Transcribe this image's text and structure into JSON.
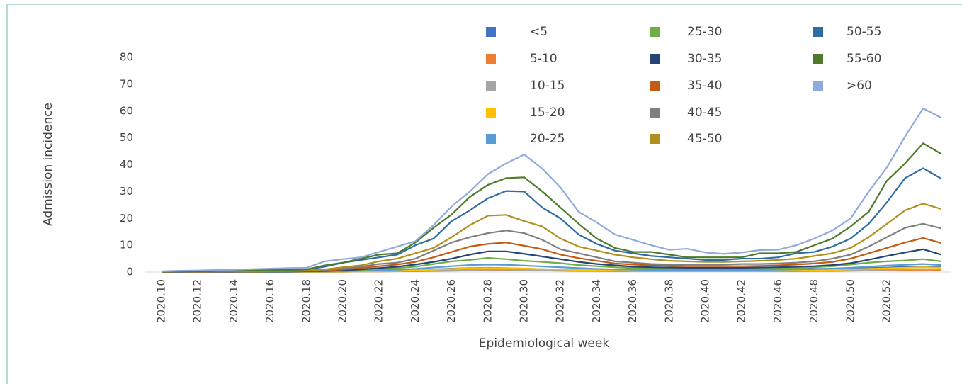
{
  "chart_data": {
    "type": "line",
    "y_label": "Admission incidence",
    "x_label": "Epidemiological week",
    "categories": [
      "2020.10",
      null,
      "2020.12",
      null,
      "2020.14",
      null,
      "2020.16",
      null,
      "2020.18",
      null,
      "2020.20",
      null,
      "2020.22",
      null,
      "2020.24",
      null,
      "2020.26",
      null,
      "2020.28",
      null,
      "2020.30",
      null,
      "2020.32",
      null,
      "2020.34",
      null,
      "2020.36",
      null,
      "2020.38",
      null,
      "2020.40",
      null,
      "2020.42",
      null,
      "2020.46",
      null,
      "2020.48",
      null,
      "2020.50",
      null,
      "2020.52",
      null,
      null,
      null
    ],
    "ylim": [
      0,
      80
    ],
    "yticks": [
      0,
      10,
      20,
      30,
      40,
      50,
      60,
      70,
      80
    ],
    "grid": false,
    "series": [
      {
        "name": "<5",
        "color": "#4472c4",
        "values": [
          0.1,
          0.1,
          0.1,
          0.1,
          0.1,
          0.1,
          0.1,
          0.1,
          0.2,
          0.2,
          0.3,
          0.4,
          0.5,
          0.6,
          0.8,
          1,
          1.3,
          1.5,
          1.6,
          1.5,
          1.3,
          1.1,
          0.9,
          0.8,
          0.7,
          0.6,
          0.6,
          0.6,
          0.6,
          0.7,
          0.7,
          0.8,
          0.8,
          0.9,
          1,
          1.1,
          1.2,
          1.3,
          1.4,
          1.5,
          1.7,
          1.9,
          2,
          1.8
        ]
      },
      {
        "name": "5-10",
        "color": "#ed7d31",
        "values": [
          0,
          0,
          0,
          0,
          0,
          0,
          0,
          0.1,
          0.1,
          0.1,
          0.1,
          0.2,
          0.2,
          0.3,
          0.3,
          0.4,
          0.5,
          0.6,
          0.7,
          0.7,
          0.6,
          0.6,
          0.5,
          0.4,
          0.4,
          0.3,
          0.3,
          0.3,
          0.3,
          0.3,
          0.3,
          0.3,
          0.3,
          0.3,
          0.3,
          0.3,
          0.4,
          0.4,
          0.5,
          0.6,
          0.7,
          0.8,
          0.9,
          0.8
        ]
      },
      {
        "name": "10-15",
        "color": "#a5a5a5",
        "values": [
          0,
          0,
          0,
          0,
          0,
          0,
          0.1,
          0.1,
          0.1,
          0.1,
          0.1,
          0.2,
          0.3,
          0.3,
          0.4,
          0.5,
          0.7,
          0.8,
          0.9,
          0.9,
          0.8,
          0.7,
          0.6,
          0.5,
          0.4,
          0.4,
          0.3,
          0.3,
          0.3,
          0.3,
          0.3,
          0.3,
          0.3,
          0.3,
          0.3,
          0.4,
          0.4,
          0.5,
          0.6,
          0.8,
          0.9,
          1,
          1.1,
          1
        ]
      },
      {
        "name": "15-20",
        "color": "#ffc000",
        "values": [
          0,
          0,
          0,
          0,
          0.1,
          0.1,
          0.1,
          0.1,
          0.1,
          0.1,
          0.2,
          0.3,
          0.4,
          0.5,
          0.7,
          0.9,
          1.2,
          1.4,
          1.5,
          1.5,
          1.3,
          1.1,
          1,
          0.8,
          0.7,
          0.6,
          0.5,
          0.5,
          0.5,
          0.5,
          0.5,
          0.5,
          0.5,
          0.5,
          0.5,
          0.6,
          0.7,
          0.8,
          1,
          1.2,
          1.4,
          1.6,
          1.8,
          1.6
        ]
      },
      {
        "name": "20-25",
        "color": "#5b9bd5",
        "values": [
          0.1,
          0.1,
          0.1,
          0.1,
          0.1,
          0.1,
          0.1,
          0.1,
          0.2,
          0.2,
          0.3,
          0.5,
          0.7,
          0.9,
          1.2,
          1.7,
          2.2,
          2.6,
          2.8,
          2.7,
          2.4,
          2.1,
          1.8,
          1.5,
          1.2,
          1,
          0.9,
          0.8,
          0.8,
          0.8,
          0.8,
          0.8,
          0.8,
          0.8,
          0.9,
          1,
          1.1,
          1.3,
          1.6,
          2,
          2.4,
          2.7,
          3,
          2.6
        ]
      },
      {
        "name": "25-30",
        "color": "#70ad47",
        "values": [
          0.1,
          0.1,
          0.1,
          0.1,
          0.1,
          0.1,
          0.1,
          0.2,
          0.2,
          0.3,
          0.5,
          0.8,
          1.1,
          1.5,
          2,
          3,
          4,
          4.5,
          5.3,
          4.8,
          4.2,
          3.8,
          3.3,
          2.6,
          2.2,
          1.8,
          1.5,
          1.4,
          1.3,
          1.3,
          1.3,
          1.3,
          1.3,
          1.3,
          1.4,
          1.5,
          1.8,
          2.2,
          2.8,
          3.5,
          4,
          4.3,
          4.8,
          4
        ]
      },
      {
        "name": "30-35",
        "color": "#264478",
        "values": [
          0.1,
          0.1,
          0.1,
          0.1,
          0.1,
          0.2,
          0.2,
          0.2,
          0.3,
          0.4,
          0.7,
          1,
          1.5,
          2,
          2.8,
          3.8,
          5,
          6.5,
          7.7,
          7.7,
          6.8,
          5.8,
          4.8,
          3.8,
          3,
          2.5,
          2,
          1.8,
          1.7,
          1.6,
          1.6,
          1.6,
          1.6,
          1.7,
          1.8,
          2,
          2.2,
          2.6,
          3.3,
          4.6,
          6,
          7.3,
          8.5,
          6.5
        ]
      },
      {
        "name": "35-40",
        "color": "#c55a11",
        "values": [
          0.1,
          0.1,
          0.1,
          0.2,
          0.2,
          0.2,
          0.3,
          0.3,
          0.4,
          0.6,
          1,
          1.5,
          2.2,
          2.8,
          3.8,
          5.5,
          7.5,
          9.5,
          10.5,
          11,
          9.8,
          8.5,
          6.5,
          5.2,
          4.2,
          3.2,
          2.8,
          2.5,
          2.3,
          2.2,
          2.2,
          2.2,
          2.2,
          2.3,
          2.5,
          2.8,
          3.2,
          3.8,
          5,
          7,
          9,
          11,
          12.7,
          10.8
        ]
      },
      {
        "name": "40-45",
        "color": "#7f7f7f",
        "values": [
          0.1,
          0.1,
          0.2,
          0.2,
          0.2,
          0.3,
          0.3,
          0.4,
          0.5,
          0.8,
          1.3,
          2,
          3,
          3.5,
          5,
          8,
          11,
          13,
          14.5,
          15.5,
          14.5,
          12,
          8.5,
          7,
          5.5,
          4,
          3.5,
          3,
          2.8,
          2.8,
          2.8,
          2.8,
          3,
          3,
          3.2,
          3.5,
          4,
          5,
          6.5,
          9.5,
          13,
          16.5,
          18,
          16.3
        ]
      },
      {
        "name": "45-50",
        "color": "#b08f1c",
        "values": [
          0.1,
          0.2,
          0.2,
          0.3,
          0.3,
          0.4,
          0.5,
          0.5,
          0.6,
          1,
          1.8,
          2.5,
          4,
          5,
          7,
          9,
          13,
          17.5,
          21,
          21.3,
          19,
          17,
          12.5,
          9.5,
          8,
          6.5,
          5.5,
          4.8,
          4.2,
          4,
          3.8,
          3.8,
          4,
          4.2,
          4.5,
          5,
          6,
          7,
          9,
          13,
          18,
          23,
          25.5,
          23.5
        ]
      },
      {
        "name": "50-55",
        "color": "#2e6ca4",
        "values": [
          0.2,
          0.2,
          0.3,
          0.4,
          0.5,
          0.6,
          0.7,
          0.8,
          1,
          2,
          3.5,
          4.5,
          5.5,
          6.5,
          10,
          12.5,
          19,
          23,
          27.5,
          30.2,
          30,
          24,
          20,
          14,
          10.5,
          8,
          7,
          6,
          5.5,
          5,
          4.5,
          4.5,
          5,
          5,
          5.5,
          7,
          7.5,
          9.5,
          12.5,
          18,
          26,
          35,
          38.7,
          34.8
        ]
      },
      {
        "name": "55-60",
        "color": "#4e7a2a",
        "values": [
          0.2,
          0.3,
          0.3,
          0.4,
          0.5,
          0.6,
          0.7,
          0.8,
          1,
          2.5,
          3.5,
          5,
          6.5,
          7,
          11,
          16.5,
          21.5,
          28,
          32.5,
          35,
          35.3,
          30,
          24,
          18,
          12.5,
          9,
          7.5,
          7.5,
          6.5,
          5.5,
          5.5,
          5.5,
          5.5,
          7,
          7,
          7.5,
          10,
          12.5,
          17,
          22.5,
          34,
          40.5,
          48,
          44
        ]
      },
      {
        "name": ">60",
        "color": "#8faadc",
        "values": [
          0.3,
          0.5,
          0.6,
          0.8,
          0.9,
          1.1,
          1.3,
          1.5,
          1.6,
          4,
          4.8,
          5.5,
          7.5,
          9.5,
          11.5,
          17.5,
          24.5,
          30,
          36.5,
          40.5,
          43.8,
          38.5,
          31.5,
          22.5,
          18.5,
          14,
          12,
          10,
          8.3,
          8.7,
          7.3,
          6.8,
          7.3,
          8.2,
          8.3,
          10,
          12.5,
          15.5,
          20,
          30,
          39,
          50.5,
          61,
          57.5
        ]
      }
    ]
  }
}
